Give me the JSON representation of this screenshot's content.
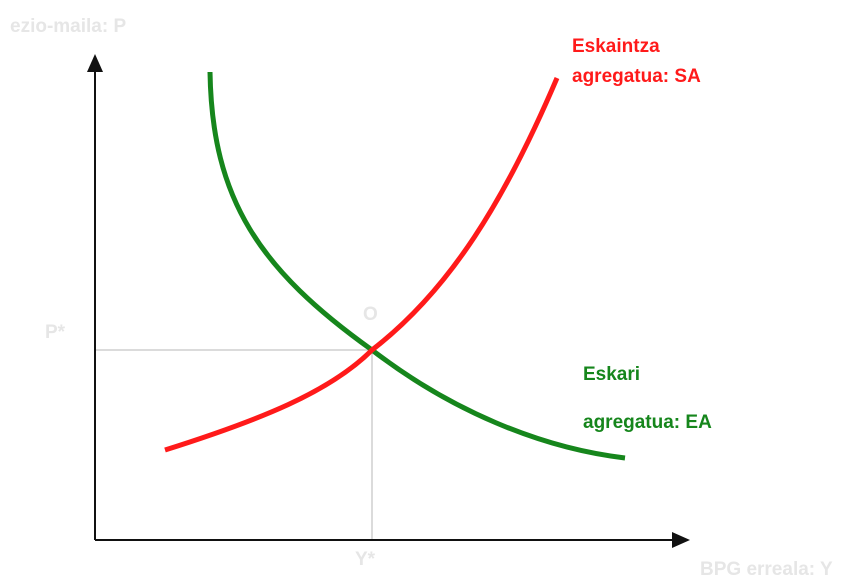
{
  "axes": {
    "y_label": "ezio-maila: P",
    "x_label": "BPG erreala: Y",
    "p_star": "P*",
    "y_star": "Y*"
  },
  "equilibrium": {
    "label": "O"
  },
  "supply": {
    "line1": "Eskaintza",
    "line2": "agregatua:  SA"
  },
  "demand": {
    "line1": "Eskari",
    "line2": "agregatua:  EA"
  }
}
